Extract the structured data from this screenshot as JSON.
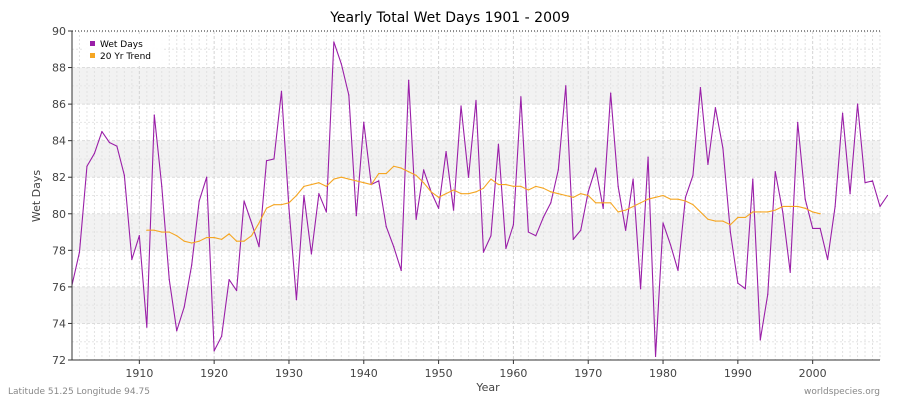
{
  "chart_data": {
    "type": "line",
    "title": "Yearly Total Wet Days 1901 - 2009",
    "xlabel": "Year",
    "ylabel": "Wet Days",
    "xlim": [
      1901,
      2009
    ],
    "ylim": [
      72,
      90
    ],
    "x_ticks": [
      1910,
      1920,
      1930,
      1940,
      1950,
      1960,
      1970,
      1980,
      1990,
      2000
    ],
    "y_ticks": [
      72,
      74,
      76,
      78,
      80,
      82,
      84,
      86,
      88,
      90
    ],
    "grid": true,
    "legend_position": "top-left",
    "series": [
      {
        "name": "Wet Days",
        "color": "#9a1fa8",
        "x_start": 1901,
        "values": [
          76.1,
          77.9,
          82.6,
          83.3,
          84.5,
          83.9,
          83.7,
          82.1,
          77.5,
          78.8,
          73.8,
          85.4,
          81.5,
          76.4,
          73.6,
          74.9,
          77.2,
          80.7,
          82.0,
          72.5,
          73.3,
          76.4,
          75.8,
          80.7,
          79.5,
          78.2,
          82.9,
          83.0,
          86.7,
          80.3,
          75.3,
          81.0,
          77.8,
          81.1,
          80.1,
          89.4,
          88.2,
          86.5,
          79.9,
          85.0,
          81.6,
          81.8,
          79.3,
          78.2,
          76.9,
          87.3,
          79.7,
          82.4,
          81.2,
          80.3,
          83.4,
          80.2,
          85.9,
          82.0,
          86.2,
          77.9,
          78.8,
          83.8,
          78.1,
          79.4,
          86.4,
          79.0,
          78.8,
          79.8,
          80.6,
          82.4,
          87.0,
          78.6,
          79.1,
          81.2,
          82.5,
          80.3,
          86.6,
          81.5,
          79.1,
          81.9,
          75.9,
          83.1,
          72.2,
          79.5,
          78.3,
          76.9,
          80.9,
          82.1,
          86.9,
          82.7,
          85.8,
          83.6,
          79.0,
          76.2,
          75.9,
          81.9,
          73.1,
          75.6,
          82.3,
          80.1,
          76.8,
          85.0,
          80.8,
          79.2,
          79.2,
          77.5,
          80.4,
          85.5,
          81.1,
          86.0,
          81.7,
          81.8,
          80.4,
          81.0
        ]
      },
      {
        "name": "20 Yr Trend",
        "color": "#f5a623",
        "x_start": 1911,
        "values": [
          79.1,
          79.1,
          79.0,
          79.0,
          78.8,
          78.5,
          78.4,
          78.5,
          78.7,
          78.7,
          78.6,
          78.9,
          78.5,
          78.5,
          78.8,
          79.5,
          80.3,
          80.5,
          80.5,
          80.6,
          81.0,
          81.5,
          81.6,
          81.7,
          81.5,
          81.9,
          82.0,
          81.9,
          81.8,
          81.7,
          81.6,
          82.2,
          82.2,
          82.6,
          82.5,
          82.3,
          82.1,
          81.7,
          81.2,
          80.9,
          81.1,
          81.3,
          81.1,
          81.1,
          81.2,
          81.4,
          81.9,
          81.6,
          81.6,
          81.5,
          81.5,
          81.3,
          81.5,
          81.4,
          81.2,
          81.1,
          81.0,
          80.9,
          81.1,
          81.0,
          80.6,
          80.6,
          80.6,
          80.1,
          80.2,
          80.4,
          80.6,
          80.8,
          80.9,
          81.0,
          80.8,
          80.8,
          80.7,
          80.5,
          80.1,
          79.7,
          79.6,
          79.6,
          79.4,
          79.8,
          79.8,
          80.1,
          80.1,
          80.1,
          80.2,
          80.4,
          80.4,
          80.4,
          80.3,
          80.1,
          80.0
        ]
      }
    ]
  },
  "footer": {
    "left": "Latitude 51.25 Longitude 94.75",
    "right": "worldspecies.org"
  }
}
